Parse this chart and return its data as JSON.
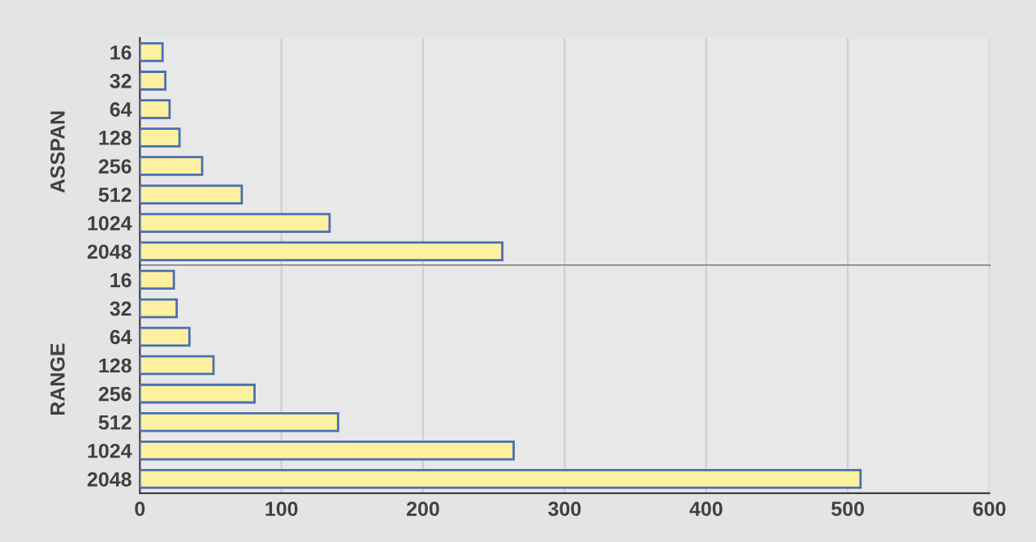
{
  "chart_data": [
    {
      "type": "bar",
      "orientation": "horizontal",
      "ylabel": "ASSPAN",
      "categories": [
        "16",
        "32",
        "64",
        "128",
        "256",
        "512",
        "1024",
        "2048"
      ],
      "series": [
        {
          "color": "#fdf0a0",
          "values": [
            16,
            18,
            21,
            28,
            44,
            72,
            134,
            256
          ]
        }
      ],
      "xlim": [
        0,
        600
      ],
      "xticks": [
        0,
        100,
        200,
        300,
        400,
        500,
        600
      ],
      "grid": "x",
      "tick_labels": "y"
    },
    {
      "type": "bar",
      "orientation": "horizontal",
      "ylabel": "RANGE",
      "categories": [
        "16",
        "32",
        "64",
        "128",
        "256",
        "512",
        "1024",
        "2048"
      ],
      "series": [
        {
          "color": "#fdf0a0",
          "values": [
            24,
            26,
            35,
            52,
            81,
            140,
            264,
            509
          ]
        }
      ],
      "xlim": [
        0,
        600
      ],
      "xticks": [
        0,
        100,
        200,
        300,
        400,
        500,
        600
      ],
      "grid": "x"
    }
  ]
}
